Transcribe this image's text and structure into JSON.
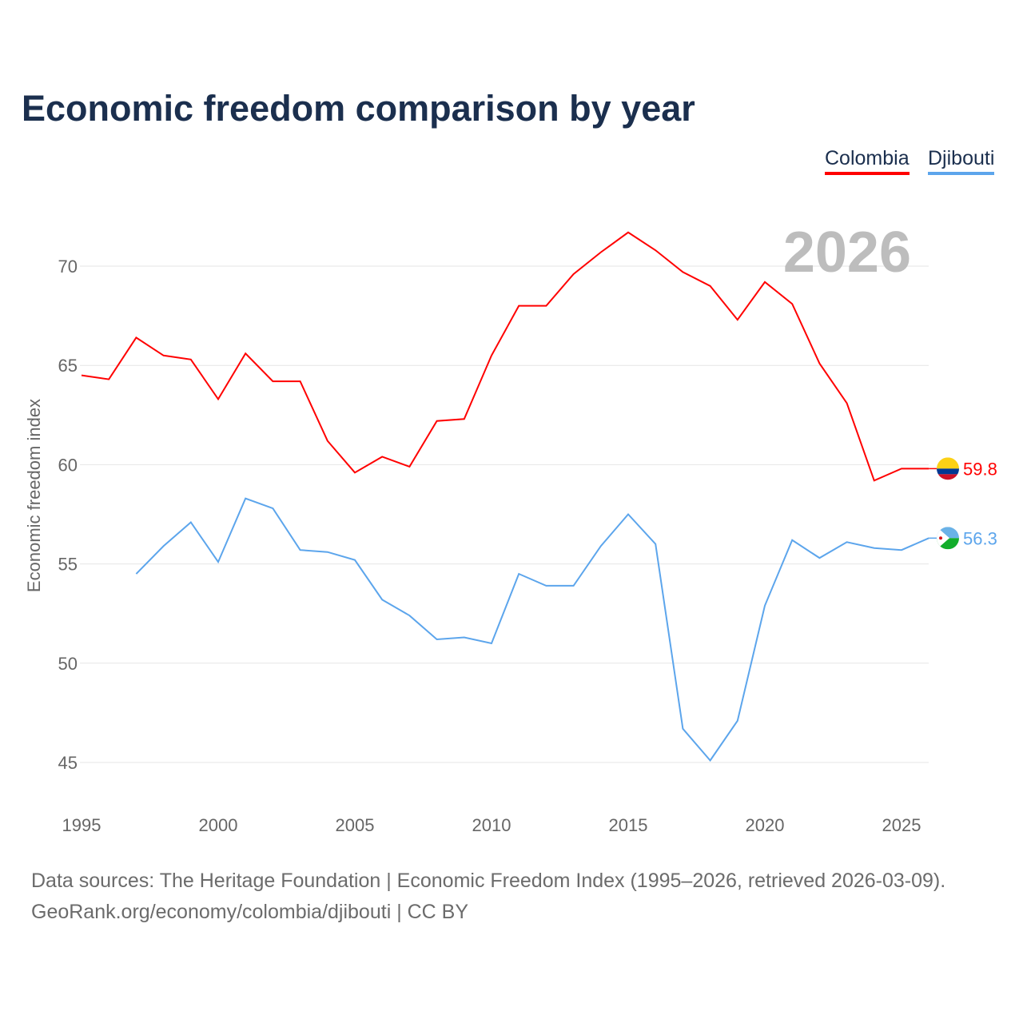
{
  "title": "Economic freedom comparison by year",
  "legend": [
    "Colombia",
    "Djibouti"
  ],
  "year_label": "2026",
  "footer": {
    "line1": "Data sources: The Heritage Foundation | Economic Freedom Index (1995–2026, retrieved 2026-03-09).",
    "line2": "GeoRank.org/economy/colombia/djibouti | CC BY"
  },
  "chart_data": {
    "type": "line",
    "title": "Economic freedom comparison by year",
    "xlabel": "",
    "ylabel": "Economic freedom index",
    "xlim": [
      1995,
      2026
    ],
    "ylim": [
      43.5,
      73
    ],
    "xticks": [
      1995,
      2000,
      2005,
      2010,
      2015,
      2020,
      2025
    ],
    "yticks": [
      45,
      50,
      55,
      60,
      65,
      70
    ],
    "grid": true,
    "legend_position": "top-right",
    "series": [
      {
        "name": "Colombia",
        "color": "#ff0000",
        "end_label": "59.8",
        "x": [
          1995,
          1996,
          1997,
          1998,
          1999,
          2000,
          2001,
          2002,
          2003,
          2004,
          2005,
          2006,
          2007,
          2008,
          2009,
          2010,
          2011,
          2012,
          2013,
          2014,
          2015,
          2016,
          2017,
          2018,
          2019,
          2020,
          2021,
          2022,
          2023,
          2024,
          2025,
          2026
        ],
        "values": [
          64.5,
          64.3,
          66.4,
          65.5,
          65.3,
          63.3,
          65.6,
          64.2,
          64.2,
          61.2,
          59.6,
          60.4,
          59.9,
          62.2,
          62.3,
          65.5,
          68.0,
          68.0,
          69.6,
          70.7,
          71.7,
          70.8,
          69.7,
          69.0,
          67.3,
          69.2,
          68.1,
          65.1,
          63.1,
          59.2,
          59.8,
          59.8
        ]
      },
      {
        "name": "Djibouti",
        "color": "#5ca5ec",
        "end_label": "56.3",
        "x": [
          1997,
          1998,
          1999,
          2000,
          2001,
          2002,
          2003,
          2004,
          2005,
          2006,
          2007,
          2008,
          2009,
          2010,
          2011,
          2012,
          2013,
          2014,
          2015,
          2016,
          2017,
          2018,
          2019,
          2020,
          2021,
          2022,
          2023,
          2024,
          2025,
          2026
        ],
        "values": [
          54.5,
          55.9,
          57.1,
          55.1,
          58.3,
          57.8,
          55.7,
          55.6,
          55.2,
          53.2,
          52.4,
          51.2,
          51.3,
          51.0,
          54.5,
          53.9,
          53.9,
          55.9,
          57.5,
          56.0,
          46.7,
          45.1,
          47.1,
          52.9,
          56.2,
          55.3,
          56.1,
          55.8,
          55.7,
          56.3
        ]
      }
    ]
  }
}
